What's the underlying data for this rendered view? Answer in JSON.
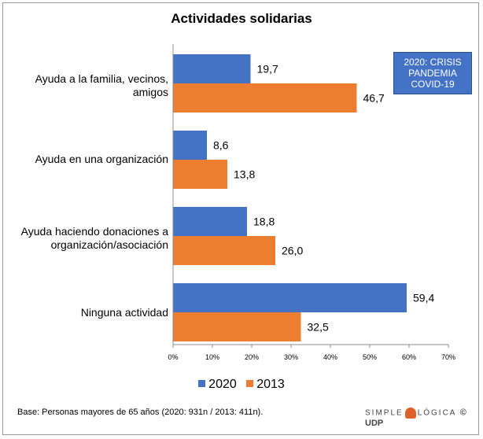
{
  "chart_data": {
    "type": "bar",
    "orientation": "horizontal",
    "title": "Actividades solidarias",
    "categories": [
      [
        "Ayuda a la familia, vecinos,",
        "amigos"
      ],
      [
        "Ayuda en una organización"
      ],
      [
        "Ayuda haciendo donaciones a",
        "organización/asociación"
      ],
      [
        "Ninguna actividad"
      ]
    ],
    "series": [
      {
        "name": "2020",
        "color": "#4472c4",
        "values": [
          19.7,
          8.6,
          18.8,
          59.4
        ],
        "labels": [
          "19,7",
          "8,6",
          "18,8",
          "59,4"
        ]
      },
      {
        "name": "2013",
        "color": "#ed7d31",
        "values": [
          46.7,
          13.8,
          26.0,
          32.5
        ],
        "labels": [
          "46,7",
          "13,8",
          "26,0",
          "32,5"
        ]
      }
    ],
    "xlim": [
      0,
      70
    ],
    "xticks": [
      "0%",
      "10%",
      "20%",
      "30%",
      "40%",
      "50%",
      "60%",
      "70%"
    ],
    "grid": false,
    "legend": "bottom"
  },
  "annotation": [
    "2020: CRISIS",
    "PANDEMIA",
    "COVID-19"
  ],
  "footnote": "Base: Personas mayores de 65 años (2020: 931n / 2013: 411n).",
  "logo": {
    "left": "SIMPLE",
    "right": "LÓGICA",
    "suffix": "© UDP"
  }
}
